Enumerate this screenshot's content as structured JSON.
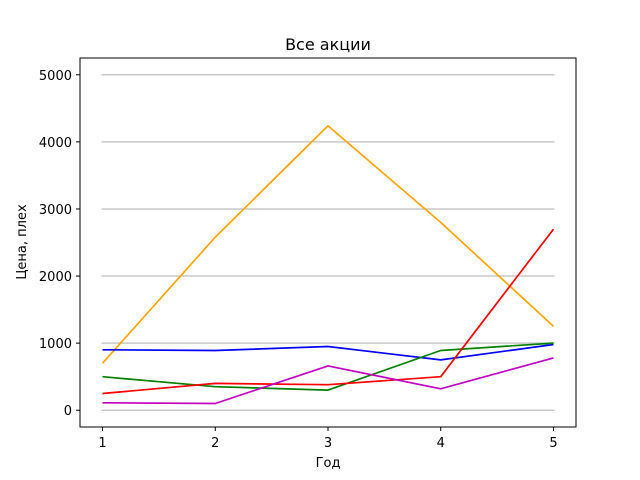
{
  "chart_data": {
    "type": "line",
    "title": "Все акции",
    "xlabel": "Год",
    "ylabel": "Цена, плех",
    "x": [
      1,
      2,
      3,
      4,
      5
    ],
    "xticks": [
      "1",
      "2",
      "3",
      "4",
      "5"
    ],
    "yticks": [
      "0",
      "1000",
      "2000",
      "3000",
      "4000",
      "5000"
    ],
    "ylim": [
      -250,
      5250
    ],
    "xlim": [
      0.8,
      5.2
    ],
    "grid": "horizontal",
    "series": [
      {
        "color": "#ffa500",
        "values": [
          700,
          2580,
          4240,
          2800,
          1250
        ]
      },
      {
        "color": "#0000ff",
        "values": [
          900,
          890,
          950,
          750,
          980
        ]
      },
      {
        "color": "#008000",
        "values": [
          500,
          350,
          300,
          890,
          1000
        ]
      },
      {
        "color": "#ff0000",
        "values": [
          250,
          400,
          380,
          500,
          2700
        ]
      },
      {
        "color": "#bf00bf",
        "values": [
          110,
          100,
          660,
          320,
          780
        ]
      }
    ]
  }
}
